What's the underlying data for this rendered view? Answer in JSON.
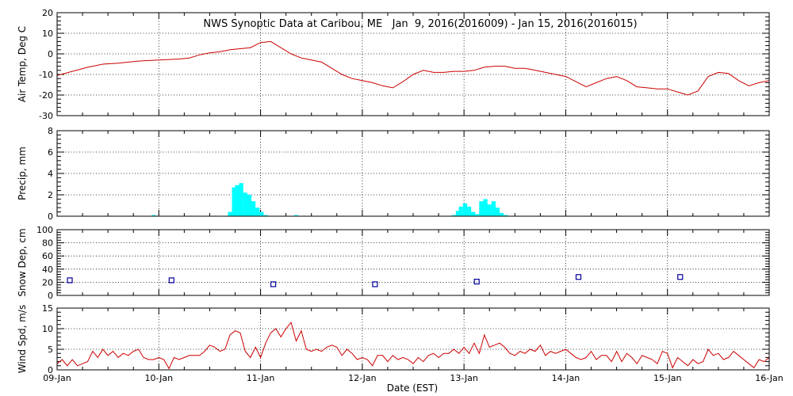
{
  "chart_data": {
    "title": "NWS Synoptic Data at Caribou, ME   Jan  9, 2016(2016009) - Jan 15, 2016(2016015)",
    "xlabel": "Date (EST)",
    "x_ticks": [
      "09-Jan",
      "10-Jan",
      "11-Jan",
      "12-Jan",
      "13-Jan",
      "14-Jan",
      "15-Jan",
      "16-Jan"
    ],
    "x_range_days": [
      0,
      7
    ],
    "panels": [
      {
        "type": "line",
        "ylabel": "Air Temp, Deg C",
        "ylim": [
          -30,
          20
        ],
        "yticks": [
          -30,
          -20,
          -10,
          0,
          10,
          20
        ],
        "color": "#cc0000",
        "x_days": [
          0,
          0.15,
          0.3,
          0.45,
          0.6,
          0.8,
          1.0,
          1.2,
          1.3,
          1.4,
          1.5,
          1.6,
          1.7,
          1.8,
          1.9,
          2.0,
          2.1,
          2.2,
          2.3,
          2.4,
          2.5,
          2.6,
          2.7,
          2.8,
          2.9,
          3.0,
          3.1,
          3.2,
          3.3,
          3.4,
          3.5,
          3.6,
          3.7,
          3.8,
          3.9,
          4.0,
          4.1,
          4.2,
          4.3,
          4.4,
          4.5,
          4.6,
          4.7,
          4.8,
          4.9,
          5.0,
          5.1,
          5.2,
          5.3,
          5.4,
          5.5,
          5.6,
          5.7,
          5.8,
          5.9,
          6.0,
          6.1,
          6.2,
          6.3,
          6.4,
          6.5,
          6.6,
          6.7,
          6.8,
          6.9,
          7.0
        ],
        "y": [
          -10.5,
          -8.5,
          -6.5,
          -5,
          -4.5,
          -3.5,
          -3,
          -2.5,
          -2,
          -0.5,
          0.5,
          1,
          2,
          2.5,
          3,
          5.5,
          6,
          3,
          0,
          -2,
          -3,
          -4,
          -7,
          -10,
          -12,
          -13,
          -14,
          -15.5,
          -16.5,
          -13.5,
          -10,
          -8,
          -9,
          -9,
          -8.5,
          -8.5,
          -8,
          -6.5,
          -6,
          -6,
          -7,
          -7,
          -8,
          -9,
          -10,
          -11,
          -13.5,
          -16,
          -14,
          -12,
          -11,
          -13,
          -16,
          -16.5,
          -17,
          -17,
          -18.5,
          -20,
          -18,
          -11,
          -9,
          -9.5,
          -13,
          -15.5,
          -14,
          -13
        ]
      },
      {
        "type": "bar",
        "ylabel": "Precip, mm",
        "ylim": [
          0,
          8
        ],
        "yticks": [
          0,
          2,
          4,
          6,
          8
        ],
        "color": "#00ffff",
        "x_days": [
          0.95,
          1.7,
          1.74,
          1.77,
          1.81,
          1.85,
          1.89,
          1.93,
          1.97,
          2.01,
          2.05,
          2.35,
          3.9,
          3.94,
          3.97,
          4.01,
          4.05,
          4.09,
          4.13,
          4.17,
          4.21,
          4.25,
          4.29,
          4.33,
          4.37,
          4.41
        ],
        "values": [
          0.1,
          0.4,
          2.7,
          2.9,
          3.1,
          2.2,
          2.0,
          1.4,
          0.8,
          0.4,
          0.1,
          0.1,
          0.1,
          0.5,
          0.9,
          1.2,
          0.9,
          0.4,
          0.2,
          1.4,
          1.6,
          1.1,
          1.4,
          0.8,
          0.3,
          0.1
        ]
      },
      {
        "type": "scatter",
        "ylabel": "Snow Dep, cm",
        "ylim": [
          0,
          100
        ],
        "yticks": [
          0,
          20,
          40,
          60,
          80,
          100
        ],
        "color": "#000099",
        "x_days": [
          0.125,
          1.125,
          2.125,
          3.125,
          4.125,
          5.125,
          6.125
        ],
        "y": [
          23,
          23,
          17,
          17,
          21,
          28,
          28
        ]
      },
      {
        "type": "line",
        "ylabel": "Wind Spd, m/s",
        "ylim": [
          0,
          15
        ],
        "yticks": [
          0,
          5,
          10,
          15
        ],
        "color": "#cc0000",
        "x_days": [
          0,
          0.05,
          0.1,
          0.15,
          0.2,
          0.25,
          0.3,
          0.35,
          0.4,
          0.45,
          0.5,
          0.55,
          0.6,
          0.65,
          0.7,
          0.75,
          0.8,
          0.85,
          0.9,
          0.95,
          1.0,
          1.05,
          1.1,
          1.15,
          1.2,
          1.25,
          1.3,
          1.35,
          1.4,
          1.45,
          1.5,
          1.55,
          1.6,
          1.65,
          1.7,
          1.75,
          1.8,
          1.85,
          1.9,
          1.95,
          2.0,
          2.05,
          2.1,
          2.15,
          2.2,
          2.25,
          2.3,
          2.35,
          2.4,
          2.45,
          2.5,
          2.55,
          2.6,
          2.65,
          2.7,
          2.75,
          2.8,
          2.85,
          2.9,
          2.95,
          3.0,
          3.05,
          3.1,
          3.15,
          3.2,
          3.25,
          3.3,
          3.35,
          3.4,
          3.45,
          3.5,
          3.55,
          3.6,
          3.65,
          3.7,
          3.75,
          3.8,
          3.85,
          3.9,
          3.95,
          4.0,
          4.05,
          4.1,
          4.15,
          4.2,
          4.25,
          4.3,
          4.35,
          4.4,
          4.45,
          4.5,
          4.55,
          4.6,
          4.65,
          4.7,
          4.75,
          4.8,
          4.85,
          4.9,
          4.95,
          5.0,
          5.05,
          5.1,
          5.15,
          5.2,
          5.25,
          5.3,
          5.35,
          5.4,
          5.45,
          5.5,
          5.55,
          5.6,
          5.65,
          5.7,
          5.75,
          5.8,
          5.85,
          5.9,
          5.95,
          6.0,
          6.05,
          6.1,
          6.15,
          6.2,
          6.25,
          6.3,
          6.35,
          6.4,
          6.45,
          6.5,
          6.55,
          6.6,
          6.65,
          6.7,
          6.75,
          6.8,
          6.85,
          6.9,
          6.95,
          7.0
        ],
        "y": [
          1.5,
          2.5,
          1.0,
          2.5,
          1.0,
          1.5,
          2.0,
          4.5,
          3.0,
          5.0,
          3.5,
          4.5,
          3.0,
          4.0,
          3.5,
          4.5,
          5.0,
          3.0,
          2.5,
          2.5,
          3.0,
          2.5,
          0.3,
          3.0,
          2.5,
          3.0,
          3.5,
          3.5,
          3.5,
          4.5,
          6.0,
          5.5,
          4.5,
          5.0,
          8.5,
          9.5,
          9.0,
          4.5,
          3.0,
          5.5,
          3.0,
          6.5,
          9.0,
          10.0,
          8.0,
          10.0,
          11.5,
          7.0,
          9.5,
          5.0,
          4.5,
          5.0,
          4.5,
          5.5,
          6.0,
          5.5,
          3.5,
          5.0,
          4.0,
          2.5,
          3.0,
          2.5,
          1.0,
          3.5,
          3.5,
          2.0,
          3.5,
          2.5,
          3.0,
          2.5,
          1.5,
          3.0,
          2.0,
          3.5,
          4.0,
          3.0,
          4.0,
          4.0,
          5.0,
          4.0,
          5.5,
          4.0,
          6.5,
          4.0,
          8.5,
          5.5,
          6.0,
          6.5,
          5.5,
          4.0,
          3.5,
          4.5,
          4.0,
          5.0,
          4.5,
          6.0,
          3.5,
          4.5,
          4.0,
          4.5,
          5.0,
          4.0,
          3.0,
          2.5,
          3.0,
          4.5,
          2.5,
          3.5,
          3.5,
          2.0,
          4.5,
          2.0,
          4.0,
          3.0,
          1.5,
          3.5,
          3.0,
          2.5,
          1.5,
          4.5,
          4.0,
          0.5,
          3.0,
          2.0,
          1.0,
          2.5,
          1.5,
          2.0,
          5.0,
          3.5,
          4.0,
          2.5,
          3.0,
          4.5,
          3.5,
          2.5,
          1.5,
          0.5,
          2.5,
          2.0,
          3.0
        ]
      }
    ]
  }
}
